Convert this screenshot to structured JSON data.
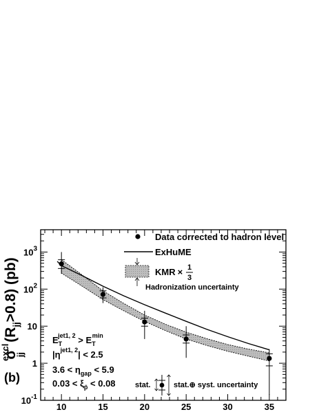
{
  "chart_data": {
    "type": "scatter",
    "panel_label": "(b)",
    "ylabel": {
      "main": "σ",
      "sup": "excl",
      "sub": "jj",
      "rest": "(R",
      "rsub": "jj",
      "tail": ">0.8) (pb)"
    },
    "xlabel": "",
    "xlim": [
      7.5,
      37.0
    ],
    "ylim": [
      0.1,
      4000
    ],
    "y_scale": "log",
    "x_ticks": [
      10,
      15,
      20,
      25,
      30,
      35
    ],
    "x_tick_labels": [
      "10",
      "15",
      "20",
      "25",
      "30",
      "35"
    ],
    "y_ticks": [
      0.1,
      1,
      10,
      100,
      1000
    ],
    "y_tick_labels": [
      {
        "base": "10",
        "exp": "-1"
      },
      {
        "base": "1",
        "exp": ""
      },
      {
        "base": "10",
        "exp": ""
      },
      {
        "base": "10",
        "exp": "2"
      },
      {
        "base": "10",
        "exp": "3"
      }
    ],
    "series": [
      {
        "name": "Data corrected to hadron level",
        "kind": "points",
        "x": [
          10,
          15,
          20,
          25,
          35
        ],
        "y": [
          480,
          72,
          13,
          4.5,
          1.35
        ],
        "stat_low": [
          360,
          58,
          10,
          3.5,
          0.85
        ],
        "stat_high": [
          620,
          90,
          16.5,
          5.8,
          1.8
        ],
        "tot_low": [
          260,
          42,
          4.5,
          1.4,
          0.14
        ],
        "tot_high": [
          1000,
          112,
          26,
          10,
          2.4
        ]
      },
      {
        "name": "ExHuME",
        "kind": "line",
        "x": [
          9.5,
          10,
          12.5,
          15,
          17.5,
          20,
          22.5,
          25,
          27.5,
          30,
          32.5,
          35
        ],
        "y": [
          560,
          430,
          230,
          120,
          66,
          38,
          22.5,
          13.5,
          8.2,
          5.2,
          3.4,
          2.3
        ]
      },
      {
        "name": "KMR",
        "kind": "band",
        "label_parts": {
          "text": "KMR",
          "times": "×",
          "num": "1",
          "den": "3"
        },
        "x": [
          10,
          12.5,
          15,
          17.5,
          20,
          22.5,
          25,
          27.5,
          30,
          32.5,
          35
        ],
        "y_low": [
          270,
          120,
          52,
          26,
          13.5,
          7.6,
          4.5,
          3.0,
          2.1,
          1.55,
          1.15
        ],
        "y_high": [
          620,
          240,
          90,
          41,
          20,
          11.3,
          6.9,
          4.6,
          3.2,
          2.4,
          1.9
        ]
      }
    ],
    "legend": {
      "placement": "top-right",
      "hadronization": "Hadronization uncertainty",
      "stat": "stat.",
      "stat_syst": "stat.⊕ syst. uncertainty"
    },
    "cuts": [
      {
        "parts": [
          {
            "t": "E"
          },
          {
            "sub": "T"
          },
          {
            "sup": "jet1, 2"
          },
          {
            "t": " > E"
          },
          {
            "sub": "T"
          },
          {
            "sup": "min"
          }
        ]
      },
      {
        "parts": [
          {
            "t": "|η"
          },
          {
            "sup": "jet1, 2"
          },
          {
            "t": "| < 2.5"
          }
        ]
      },
      {
        "parts": [
          {
            "t": "3.6 < η"
          },
          {
            "sub": "gap"
          },
          {
            "t": " < 5.9"
          }
        ]
      },
      {
        "parts": [
          {
            "t": "0.03 < ξ"
          },
          {
            "sub": "p̄"
          },
          {
            "t": " < 0.08"
          }
        ]
      }
    ],
    "grid": false
  }
}
